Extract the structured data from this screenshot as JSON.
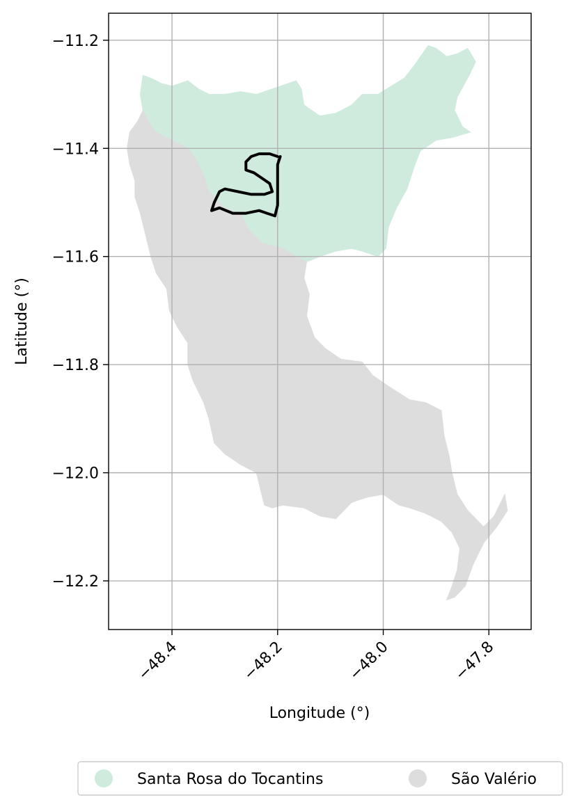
{
  "map": {
    "xlabel": "Longitude (°)",
    "ylabel": "Latitude (°)",
    "x_ticks": [
      -48.4,
      -48.2,
      -48.0,
      -47.8
    ],
    "x_tick_labels": [
      "−48.4",
      "−48.2",
      "−48.0",
      "−47.8"
    ],
    "y_ticks": [
      -11.2,
      -11.4,
      -11.6,
      -11.8,
      -12.0,
      -12.2
    ],
    "y_tick_labels": [
      "−11.2",
      "−11.4",
      "−11.6",
      "−11.8",
      "−12.0",
      "−12.2"
    ],
    "xlim": [
      -48.52,
      -47.72
    ],
    "ylim": [
      -12.29,
      -11.15
    ],
    "grid": true,
    "legend_position": "bottom-center",
    "colors": {
      "santa_rosa": "#cfebdd",
      "sao_valerio": "#dddddd",
      "track": "#000000",
      "grid": "#b0b0b0"
    },
    "regions": [
      {
        "name": "Santa Rosa do Tocantins",
        "color": "#cfebdd",
        "outline": [
          [
            -48.455,
            -11.265
          ],
          [
            -48.44,
            -11.27
          ],
          [
            -48.42,
            -11.28
          ],
          [
            -48.4,
            -11.285
          ],
          [
            -48.37,
            -11.275
          ],
          [
            -48.35,
            -11.29
          ],
          [
            -48.33,
            -11.3
          ],
          [
            -48.3,
            -11.3
          ],
          [
            -48.27,
            -11.295
          ],
          [
            -48.24,
            -11.3
          ],
          [
            -48.21,
            -11.29
          ],
          [
            -48.18,
            -11.28
          ],
          [
            -48.165,
            -11.275
          ],
          [
            -48.155,
            -11.29
          ],
          [
            -48.15,
            -11.32
          ],
          [
            -48.12,
            -11.34
          ],
          [
            -48.09,
            -11.335
          ],
          [
            -48.06,
            -11.32
          ],
          [
            -48.04,
            -11.3
          ],
          [
            -48.01,
            -11.3
          ],
          [
            -47.985,
            -11.285
          ],
          [
            -47.96,
            -11.27
          ],
          [
            -47.94,
            -11.245
          ],
          [
            -47.915,
            -11.21
          ],
          [
            -47.9,
            -11.215
          ],
          [
            -47.88,
            -11.23
          ],
          [
            -47.86,
            -11.225
          ],
          [
            -47.84,
            -11.215
          ],
          [
            -47.825,
            -11.24
          ],
          [
            -47.84,
            -11.27
          ],
          [
            -47.86,
            -11.305
          ],
          [
            -47.865,
            -11.33
          ],
          [
            -47.85,
            -11.36
          ],
          [
            -47.835,
            -11.37
          ],
          [
            -47.87,
            -11.38
          ],
          [
            -47.9,
            -11.385
          ],
          [
            -47.93,
            -11.405
          ],
          [
            -47.94,
            -11.43
          ],
          [
            -47.955,
            -11.475
          ],
          [
            -47.975,
            -11.51
          ],
          [
            -47.99,
            -11.545
          ],
          [
            -47.995,
            -11.585
          ],
          [
            -48.01,
            -11.6
          ],
          [
            -48.04,
            -11.59
          ],
          [
            -48.06,
            -11.585
          ],
          [
            -48.09,
            -11.59
          ],
          [
            -48.12,
            -11.6
          ],
          [
            -48.145,
            -11.61
          ],
          [
            -48.165,
            -11.6
          ],
          [
            -48.19,
            -11.585
          ],
          [
            -48.21,
            -11.58
          ],
          [
            -48.23,
            -11.575
          ],
          [
            -48.255,
            -11.55
          ],
          [
            -48.27,
            -11.52
          ],
          [
            -48.3,
            -11.51
          ],
          [
            -48.33,
            -11.48
          ],
          [
            -48.34,
            -11.45
          ],
          [
            -48.355,
            -11.42
          ],
          [
            -48.37,
            -11.4
          ],
          [
            -48.4,
            -11.385
          ],
          [
            -48.43,
            -11.37
          ],
          [
            -48.445,
            -11.35
          ],
          [
            -48.455,
            -11.33
          ],
          [
            -48.46,
            -11.3
          ]
        ]
      },
      {
        "name": "São Valério",
        "color": "#dddddd",
        "outline": [
          [
            -48.455,
            -11.33
          ],
          [
            -48.445,
            -11.35
          ],
          [
            -48.43,
            -11.37
          ],
          [
            -48.4,
            -11.385
          ],
          [
            -48.37,
            -11.4
          ],
          [
            -48.355,
            -11.42
          ],
          [
            -48.34,
            -11.45
          ],
          [
            -48.33,
            -11.48
          ],
          [
            -48.3,
            -11.51
          ],
          [
            -48.27,
            -11.52
          ],
          [
            -48.255,
            -11.55
          ],
          [
            -48.23,
            -11.575
          ],
          [
            -48.21,
            -11.58
          ],
          [
            -48.19,
            -11.585
          ],
          [
            -48.165,
            -11.6
          ],
          [
            -48.145,
            -11.61
          ],
          [
            -48.15,
            -11.64
          ],
          [
            -48.14,
            -11.67
          ],
          [
            -48.145,
            -11.71
          ],
          [
            -48.13,
            -11.75
          ],
          [
            -48.11,
            -11.77
          ],
          [
            -48.08,
            -11.79
          ],
          [
            -48.04,
            -11.795
          ],
          [
            -48.02,
            -11.82
          ],
          [
            -47.99,
            -11.84
          ],
          [
            -47.95,
            -11.865
          ],
          [
            -47.92,
            -11.87
          ],
          [
            -47.89,
            -11.885
          ],
          [
            -47.885,
            -11.93
          ],
          [
            -47.875,
            -11.97
          ],
          [
            -47.87,
            -12.0
          ],
          [
            -47.86,
            -12.04
          ],
          [
            -47.84,
            -12.07
          ],
          [
            -47.81,
            -12.1
          ],
          [
            -47.79,
            -12.08
          ],
          [
            -47.775,
            -12.05
          ],
          [
            -47.77,
            -12.04
          ],
          [
            -47.765,
            -12.07
          ],
          [
            -47.785,
            -12.1
          ],
          [
            -47.81,
            -12.13
          ],
          [
            -47.83,
            -12.17
          ],
          [
            -47.845,
            -12.21
          ],
          [
            -47.865,
            -12.23
          ],
          [
            -47.88,
            -12.235
          ],
          [
            -47.87,
            -12.21
          ],
          [
            -47.86,
            -12.18
          ],
          [
            -47.855,
            -12.14
          ],
          [
            -47.87,
            -12.11
          ],
          [
            -47.89,
            -12.09
          ],
          [
            -47.92,
            -12.075
          ],
          [
            -47.95,
            -12.065
          ],
          [
            -47.97,
            -12.06
          ],
          [
            -48.0,
            -12.04
          ],
          [
            -48.03,
            -12.045
          ],
          [
            -48.06,
            -12.055
          ],
          [
            -48.09,
            -12.085
          ],
          [
            -48.12,
            -12.08
          ],
          [
            -48.15,
            -12.065
          ],
          [
            -48.19,
            -12.06
          ],
          [
            -48.21,
            -12.065
          ],
          [
            -48.225,
            -12.06
          ],
          [
            -48.23,
            -12.04
          ],
          [
            -48.24,
            -12.0
          ],
          [
            -48.27,
            -11.985
          ],
          [
            -48.3,
            -11.965
          ],
          [
            -48.32,
            -11.945
          ],
          [
            -48.33,
            -11.9
          ],
          [
            -48.34,
            -11.87
          ],
          [
            -48.36,
            -11.83
          ],
          [
            -48.37,
            -11.8
          ],
          [
            -48.37,
            -11.76
          ],
          [
            -48.39,
            -11.73
          ],
          [
            -48.405,
            -11.7
          ],
          [
            -48.41,
            -11.66
          ],
          [
            -48.43,
            -11.63
          ],
          [
            -48.44,
            -11.6
          ],
          [
            -48.45,
            -11.56
          ],
          [
            -48.46,
            -11.52
          ],
          [
            -48.47,
            -11.49
          ],
          [
            -48.47,
            -11.46
          ],
          [
            -48.48,
            -11.43
          ],
          [
            -48.485,
            -11.4
          ],
          [
            -48.48,
            -11.37
          ],
          [
            -48.465,
            -11.35
          ]
        ]
      }
    ],
    "track": [
      [
        -48.2,
        -11.415
      ],
      [
        -48.215,
        -11.41
      ],
      [
        -48.235,
        -11.41
      ],
      [
        -48.25,
        -11.415
      ],
      [
        -48.26,
        -11.425
      ],
      [
        -48.26,
        -11.44
      ],
      [
        -48.245,
        -11.445
      ],
      [
        -48.23,
        -11.455
      ],
      [
        -48.215,
        -11.465
      ],
      [
        -48.21,
        -11.48
      ],
      [
        -48.225,
        -11.485
      ],
      [
        -48.25,
        -11.485
      ],
      [
        -48.275,
        -11.48
      ],
      [
        -48.3,
        -11.475
      ],
      [
        -48.31,
        -11.48
      ],
      [
        -48.32,
        -11.5
      ],
      [
        -48.325,
        -11.515
      ],
      [
        -48.31,
        -11.51
      ],
      [
        -48.285,
        -11.52
      ],
      [
        -48.26,
        -11.52
      ],
      [
        -48.235,
        -11.515
      ],
      [
        -48.22,
        -11.52
      ],
      [
        -48.205,
        -11.525
      ],
      [
        -48.2,
        -11.505
      ],
      [
        -48.2,
        -11.47
      ],
      [
        -48.2,
        -11.43
      ],
      [
        -48.195,
        -11.415
      ]
    ],
    "legend": [
      {
        "label": "Santa Rosa do Tocantins",
        "color": "#cfebdd"
      },
      {
        "label": "São Valério",
        "color": "#dddddd"
      }
    ]
  }
}
